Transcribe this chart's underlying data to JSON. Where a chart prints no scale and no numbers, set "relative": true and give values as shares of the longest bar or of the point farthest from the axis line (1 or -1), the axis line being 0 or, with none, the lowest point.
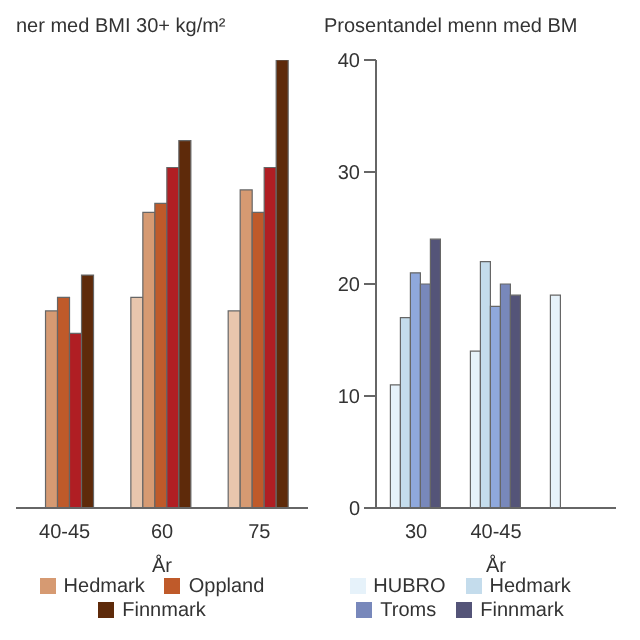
{
  "chart_data": [
    {
      "type": "bar",
      "title": "ner med BMI 30+ kg/m²",
      "xlabel": "År",
      "categories": [
        "40-45",
        "60",
        "75"
      ],
      "relative": true,
      "grid": false,
      "legend": "bottom",
      "series": [
        {
          "color": "#e8c6ad",
          "values": [
            null,
            0.47,
            0.44
          ]
        },
        {
          "name": "Hedmark",
          "color": "#d69a72",
          "values": [
            0.44,
            0.66,
            0.71
          ]
        },
        {
          "name": "Oppland",
          "color": "#bf5a2a",
          "values": [
            0.47,
            0.68,
            0.66
          ]
        },
        {
          "color": "#b01e23",
          "values": [
            0.39,
            0.76,
            0.76
          ]
        },
        {
          "name": "Finnmark",
          "color": "#5e2a0a",
          "values": [
            0.52,
            0.82,
            1
          ]
        }
      ]
    },
    {
      "type": "bar",
      "title": "Prosentandel menn med BM",
      "xlabel": "År",
      "categories": [
        "30",
        "40-45",
        null
      ],
      "ylim": [
        0,
        40
      ],
      "yticks": [
        0,
        10,
        20,
        30,
        40
      ],
      "grid": false,
      "legend": "bottom",
      "series": [
        {
          "name": "HUBRO",
          "color": "#e6f2fa",
          "values": [
            11,
            14,
            19
          ]
        },
        {
          "name": "Hedmark",
          "color": "#c4dcec",
          "values": [
            17,
            22,
            null
          ]
        },
        {
          "color": "#8fa8dc",
          "values": [
            21,
            18,
            null
          ]
        },
        {
          "name": "Troms",
          "color": "#7888bb",
          "values": [
            20,
            20,
            null
          ]
        },
        {
          "name": "Finnmark",
          "color": "#545478",
          "values": [
            24,
            19,
            null
          ]
        }
      ]
    }
  ]
}
